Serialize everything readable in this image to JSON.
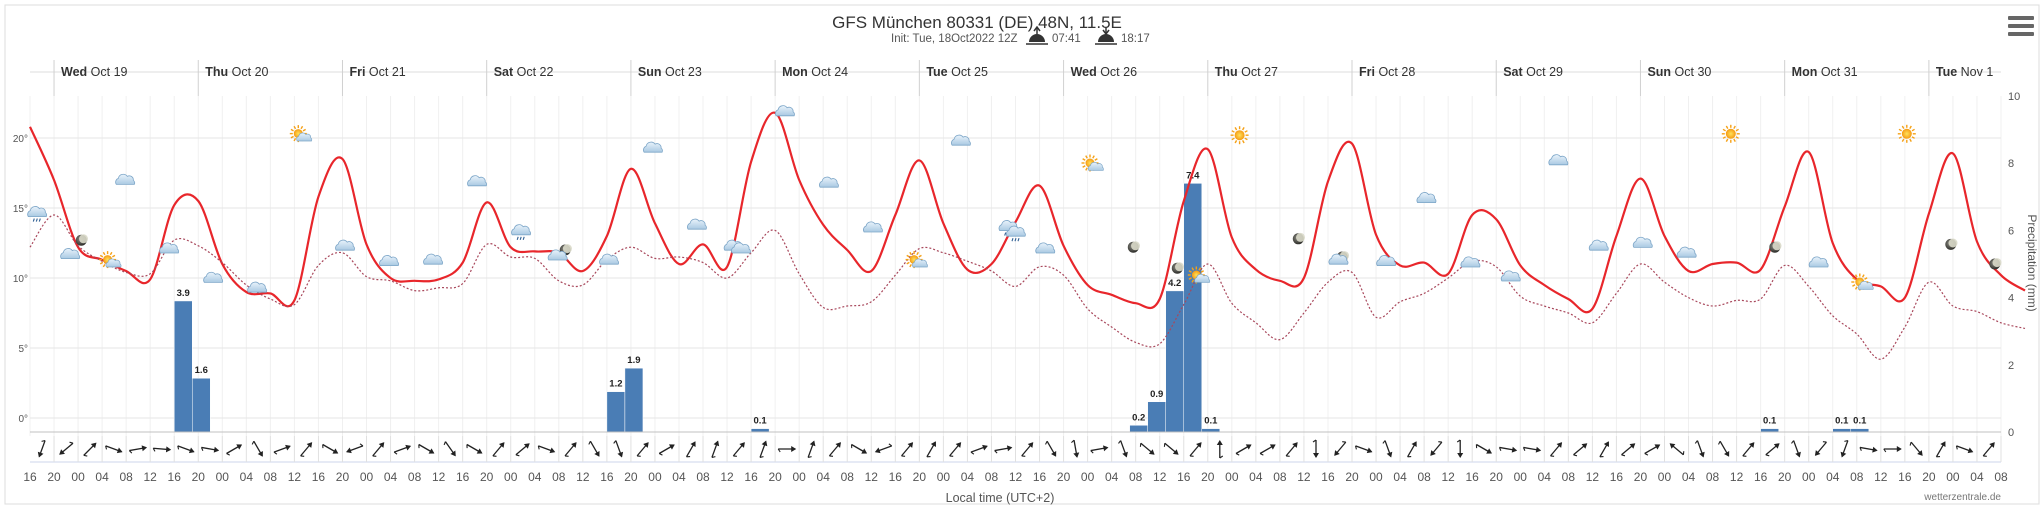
{
  "chart_data": {
    "type": "line+bar",
    "title": "GFS München 80331 (DE) 48N, 11.5E",
    "subtitle_init": "Init: Tue, 18Oct2022 12Z",
    "sunrise_time": "07:41",
    "sunset_time": "18:17",
    "credit": "wetterzentrale.de",
    "xlabel": "Local time (UTC+2)",
    "ylabel_right": "Precipitation (mm)",
    "y_left_range": [
      -1,
      23
    ],
    "y_left_ticks": [
      "0°",
      "5°",
      "10°",
      "15°",
      "20°"
    ],
    "y_right_range": [
      0,
      10
    ],
    "y_right_ticks": [
      "0",
      "2",
      "4",
      "6",
      "8",
      "10"
    ],
    "hour_step": 4,
    "hour_labels": [
      "16",
      "20",
      "00",
      "04",
      "08",
      "12",
      "16",
      "20",
      "00",
      "04",
      "08",
      "12",
      "16",
      "20",
      "00",
      "04",
      "08",
      "12",
      "16",
      "20",
      "00",
      "04",
      "08",
      "12",
      "16",
      "20",
      "00",
      "04",
      "08",
      "12",
      "16",
      "20",
      "00",
      "04",
      "08",
      "12",
      "16",
      "20",
      "00",
      "04",
      "08",
      "12",
      "16",
      "20",
      "00",
      "04",
      "08",
      "12",
      "16",
      "20",
      "00",
      "04",
      "08",
      "12",
      "16",
      "20",
      "00",
      "04",
      "08",
      "12",
      "16",
      "20",
      "00",
      "04",
      "08",
      "12",
      "16",
      "20",
      "00",
      "04",
      "08",
      "12",
      "16",
      "20",
      "00",
      "04",
      "08",
      "12",
      "16",
      "20",
      "00",
      "04",
      "08",
      "12",
      "16",
      "20",
      "00",
      "04"
    ],
    "day_labels": [
      {
        "day": "Wed",
        "date": "Oct 19",
        "hour": 8
      },
      {
        "day": "Thu",
        "date": "Oct 20",
        "hour": 32
      },
      {
        "day": "Fri",
        "date": "Oct 21",
        "hour": 56
      },
      {
        "day": "Sat",
        "date": "Oct 22",
        "hour": 80
      },
      {
        "day": "Sun",
        "date": "Oct 23",
        "hour": 104
      },
      {
        "day": "Mon",
        "date": "Oct 24",
        "hour": 128
      },
      {
        "day": "Tue",
        "date": "Oct 25",
        "hour": 152
      },
      {
        "day": "Wed",
        "date": "Oct 26",
        "hour": 176
      },
      {
        "day": "Thu",
        "date": "Oct 27",
        "hour": 200
      },
      {
        "day": "Fri",
        "date": "Oct 28",
        "hour": 224
      },
      {
        "day": "Sat",
        "date": "Oct 29",
        "hour": 248
      },
      {
        "day": "Sun",
        "date": "Oct 30",
        "hour": 272
      },
      {
        "day": "Mon",
        "date": "Oct 31",
        "hour": 296
      },
      {
        "day": "Tue",
        "date": "Nov 1",
        "hour": 320
      }
    ],
    "series": [
      {
        "name": "Temperature",
        "unit": "°C",
        "color": "#e8262b",
        "style": "solid",
        "x": [
          -4,
          0,
          4,
          8,
          12,
          16,
          20,
          24,
          28,
          32,
          36,
          40,
          44,
          48,
          52,
          56,
          60,
          64,
          68,
          72,
          76,
          80,
          84,
          88,
          92,
          96,
          100,
          104,
          108,
          112,
          116,
          120,
          124,
          128,
          132,
          136,
          140,
          144,
          148,
          152,
          156,
          160,
          164,
          168,
          172,
          176,
          180,
          184,
          188,
          192,
          196,
          200,
          204,
          208,
          212,
          216,
          220,
          224,
          228,
          232,
          236,
          240,
          244,
          248,
          252,
          256,
          260,
          264,
          268,
          272,
          276,
          280,
          284,
          288,
          292,
          296,
          300,
          304,
          308,
          312,
          316,
          320,
          324,
          328
        ],
        "values": [
          20.8,
          17.0,
          12.2,
          11.3,
          10.5,
          9.9,
          15.2,
          15.5,
          11.0,
          9.0,
          8.9,
          8.4,
          15.8,
          18.5,
          12.4,
          10.0,
          9.8,
          9.9,
          11.1,
          15.4,
          12.2,
          11.9,
          11.8,
          10.5,
          13.0,
          17.8,
          13.9,
          11.0,
          12.4,
          10.8,
          18.3,
          21.8,
          17.0,
          13.8,
          12.0,
          10.5,
          14.5,
          18.4,
          13.9,
          10.6,
          11.0,
          14.0,
          16.6,
          12.3,
          9.5,
          8.8,
          8.2,
          8.5,
          15.5,
          19.2,
          12.9,
          10.6,
          9.8,
          10.0,
          16.9,
          19.6,
          13.1,
          10.9,
          11.1,
          10.3,
          14.5,
          14.2,
          10.9,
          9.5,
          8.5,
          7.8,
          13.0,
          17.1,
          13.0,
          10.5,
          11.0,
          11.1,
          10.6,
          15.1,
          19.0,
          12.5,
          9.9,
          9.4,
          8.6,
          14.6,
          18.9,
          12.6,
          10.2,
          9.1
        ]
      },
      {
        "name": "Dewpoint",
        "unit": "°C",
        "color": "#a8475b",
        "style": "dotted",
        "x": [
          -4,
          0,
          4,
          8,
          12,
          16,
          20,
          24,
          28,
          32,
          36,
          40,
          44,
          48,
          52,
          56,
          60,
          64,
          68,
          72,
          76,
          80,
          84,
          88,
          92,
          96,
          100,
          104,
          108,
          112,
          116,
          120,
          124,
          128,
          132,
          136,
          140,
          144,
          148,
          152,
          156,
          160,
          164,
          168,
          172,
          176,
          180,
          184,
          188,
          192,
          196,
          200,
          204,
          208,
          212,
          216,
          220,
          224,
          228,
          232,
          236,
          240,
          244,
          248,
          252,
          256,
          260,
          264,
          268,
          272,
          276,
          280,
          284,
          288,
          292,
          296,
          300,
          304,
          308,
          312,
          316,
          320,
          324,
          328
        ],
        "values": [
          12.2,
          14.5,
          12.3,
          11.2,
          10.4,
          10.3,
          12.7,
          12.3,
          11.1,
          9.5,
          8.5,
          8.1,
          10.9,
          11.8,
          10.1,
          9.8,
          9.1,
          9.3,
          9.6,
          12.4,
          11.5,
          11.4,
          9.8,
          9.5,
          11.3,
          12.2,
          11.4,
          11.5,
          11.1,
          10.0,
          11.8,
          13.4,
          10.3,
          7.9,
          8.0,
          8.3,
          10.2,
          12.1,
          11.8,
          11.2,
          10.5,
          9.4,
          10.8,
          10.2,
          7.8,
          6.5,
          5.4,
          5.3,
          8.1,
          11.0,
          8.2,
          6.8,
          5.6,
          7.5,
          9.7,
          10.4,
          7.2,
          8.3,
          8.9,
          10.0,
          11.2,
          10.8,
          8.7,
          8.0,
          7.5,
          6.8,
          8.9,
          11.0,
          9.7,
          8.6,
          8.0,
          8.4,
          8.5,
          10.9,
          9.4,
          7.3,
          6.0,
          4.2,
          6.5,
          9.7,
          8.0,
          7.6,
          6.8,
          6.4
        ]
      },
      {
        "name": "Precipitation",
        "unit": "mm",
        "color": "#4a7db5",
        "type": "bar",
        "bars": [
          {
            "start": 20,
            "value": 3.9,
            "label": "3.9"
          },
          {
            "start": 23,
            "value": 1.6,
            "label": "1.6"
          },
          {
            "start": 92,
            "value": 1.2,
            "label": "1.2"
          },
          {
            "start": 95,
            "value": 1.9,
            "label": "1.9"
          },
          {
            "start": 116,
            "value": 0.1,
            "label": "0.1"
          },
          {
            "start": 179,
            "value": 0.2,
            "label": "0.2"
          },
          {
            "start": 182,
            "value": 0.9,
            "label": "0.9"
          },
          {
            "start": 185,
            "value": 4.2,
            "label": "4.2"
          },
          {
            "start": 188,
            "value": 7.4,
            "label": "7.4"
          },
          {
            "start": 191,
            "value": 0.1,
            "label": "0.1"
          },
          {
            "start": 284,
            "value": 0.1,
            "label": "0.1"
          },
          {
            "start": 296,
            "value": 0.1,
            "label": "0.1"
          },
          {
            "start": 299,
            "value": 0.1,
            "label": "0.1"
          }
        ]
      }
    ],
    "weather_icons": [
      {
        "type": "rain",
        "hour": 2,
        "temp": 14.6
      },
      {
        "type": "moon",
        "hour": 14,
        "temp": 12.7
      },
      {
        "type": "cloud",
        "hour": 11,
        "temp": 11.6
      },
      {
        "type": "sun-cloud",
        "hour": 22,
        "temp": 11.1
      },
      {
        "type": "cloud",
        "hour": 26,
        "temp": 16.9
      },
      {
        "type": "cloud",
        "hour": 38,
        "temp": 12.0
      },
      {
        "type": "cloud",
        "hour": 50,
        "temp": 9.9
      },
      {
        "type": "cloud",
        "hour": 62,
        "temp": 9.2
      },
      {
        "type": "sun-cloud",
        "hour": 74,
        "temp": 20.1
      },
      {
        "type": "cloud",
        "hour": 86,
        "temp": 12.2
      },
      {
        "type": "cloud",
        "hour": 98,
        "temp": 11.1
      },
      {
        "type": "cloud",
        "hour": 110,
        "temp": 11.2
      },
      {
        "type": "cloud",
        "hour": 122,
        "temp": 16.8
      },
      {
        "type": "rain",
        "hour": 134,
        "temp": 13.3
      },
      {
        "type": "moon",
        "hour": 146,
        "temp": 12.0
      },
      {
        "type": "cloud",
        "hour": 144,
        "temp": 11.5
      },
      {
        "type": "cloud",
        "hour": 158,
        "temp": 11.2
      },
      {
        "type": "cloud",
        "hour": 170,
        "temp": 19.2
      },
      {
        "type": "cloud",
        "hour": 182,
        "temp": 13.7
      },
      {
        "type": "cloud",
        "hour": 192,
        "temp": 12.2
      },
      {
        "type": "cloud",
        "hour": 194,
        "temp": 12.0
      },
      {
        "type": "cloud",
        "hour": 206,
        "temp": 21.8
      },
      {
        "type": "cloud",
        "hour": 218,
        "temp": 16.7
      },
      {
        "type": "cloud",
        "hour": 230,
        "temp": 13.5
      },
      {
        "type": "sun-cloud",
        "hour": 242,
        "temp": 11.1
      },
      {
        "type": "cloud",
        "hour": 254,
        "temp": 19.7
      },
      {
        "type": "rain",
        "hour": 267,
        "temp": 13.6
      },
      {
        "type": "rain",
        "hour": 269,
        "temp": 13.2
      },
      {
        "type": "cloud",
        "hour": 277,
        "temp": 12.0
      },
      {
        "type": "sun-cloud",
        "hour": 290,
        "temp": 18.0
      },
      {
        "type": "moon",
        "hour": 301,
        "temp": 12.2
      },
      {
        "type": "moon",
        "hour": 313,
        "temp": 10.7
      },
      {
        "type": "sun-cloud",
        "hour": 319,
        "temp": 10.0
      },
      {
        "type": "sun",
        "hour": 330,
        "temp": 20.2
      },
      {
        "type": "moon",
        "hour": 346,
        "temp": 12.8
      },
      {
        "type": "moon",
        "hour": 358,
        "temp": 11.5
      },
      {
        "type": "cloud",
        "hour": 357,
        "temp": 11.2
      },
      {
        "type": "cloud",
        "hour": 370,
        "temp": 11.1
      },
      {
        "type": "cloud",
        "hour": 381,
        "temp": 15.6
      },
      {
        "type": "cloud",
        "hour": 393,
        "temp": 11.0
      },
      {
        "type": "cloud",
        "hour": 404,
        "temp": 10.0
      },
      {
        "type": "cloud",
        "hour": 417,
        "temp": 18.3
      },
      {
        "type": "cloud",
        "hour": 428,
        "temp": 12.2
      },
      {
        "type": "cloud",
        "hour": 440,
        "temp": 12.4
      },
      {
        "type": "cloud",
        "hour": 452,
        "temp": 11.7
      },
      {
        "type": "sun",
        "hour": 464,
        "temp": 20.3
      },
      {
        "type": "moon",
        "hour": 476,
        "temp": 12.2
      },
      {
        "type": "cloud",
        "hour": 488,
        "temp": 11.0
      },
      {
        "type": "sun-cloud",
        "hour": 500,
        "temp": 9.5
      },
      {
        "type": "sun",
        "hour": 512,
        "temp": 20.3
      },
      {
        "type": "moon",
        "hour": 524,
        "temp": 12.4
      },
      {
        "type": "moon",
        "hour": 536,
        "temp": 11.0
      }
    ],
    "wind_arrows": [
      200,
      230,
      45,
      110,
      80,
      95,
      110,
      100,
      60,
      150,
      70,
      40,
      120,
      250,
      40,
      70,
      120,
      145,
      120,
      40,
      50,
      110,
      40,
      150,
      160,
      40,
      60,
      30,
      20,
      40,
      20,
      90,
      20,
      40,
      120,
      250,
      40,
      30,
      40,
      70,
      80,
      40,
      150,
      170,
      80,
      160,
      130,
      130,
      40,
      0,
      60,
      60,
      40,
      180,
      220,
      110,
      160,
      30,
      220,
      180,
      120,
      100,
      100,
      40,
      50,
      30,
      50,
      60,
      310,
      160,
      150,
      40,
      50,
      160,
      220,
      200,
      100,
      90,
      140,
      30,
      110,
      40
    ]
  }
}
